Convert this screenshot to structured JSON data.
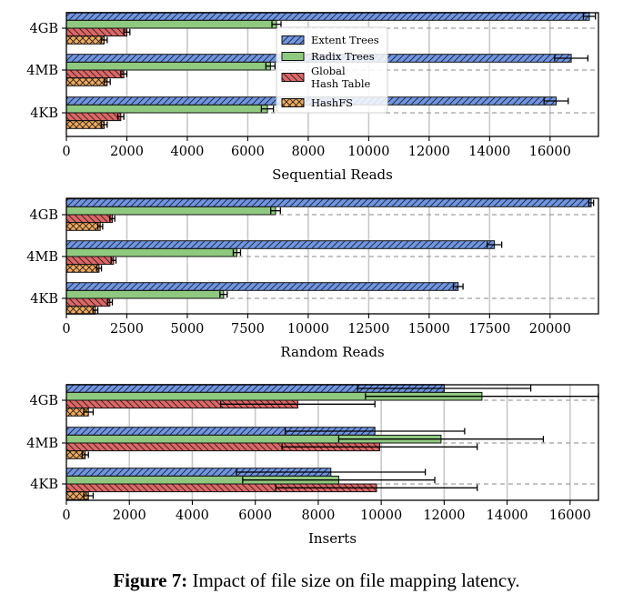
{
  "caption": {
    "label": "Figure 7:",
    "text": "Impact of file size on file mapping latency."
  },
  "colors": {
    "Extent Trees": "#6f96e6",
    "Radix Trees": "#8fc97f",
    "Global Hash Table": "#e06666",
    "HashFS": "#f4a95c"
  },
  "chart_data": [
    {
      "type": "bar",
      "orientation": "horizontal",
      "xlabel": "Sequential Reads",
      "xlim": [
        0,
        17600
      ],
      "xticks": [
        0,
        2000,
        4000,
        6000,
        8000,
        10000,
        12000,
        14000,
        16000
      ],
      "categories": [
        "4KB",
        "4MB",
        "4GB"
      ],
      "legend": {
        "placement": "top-center",
        "entries": [
          "Extent Trees",
          "Radix Trees",
          "Global Hash Table",
          "HashFS"
        ]
      },
      "series": [
        {
          "name": "Extent Trees",
          "values": [
            16200,
            16700,
            17300
          ],
          "errors": [
            400,
            550,
            200
          ]
        },
        {
          "name": "Radix Trees",
          "values": [
            6650,
            6750,
            6950
          ],
          "errors": [
            200,
            150,
            150
          ]
        },
        {
          "name": "Global Hash Table",
          "values": [
            1800,
            1900,
            2000
          ],
          "errors": [
            100,
            100,
            100
          ]
        },
        {
          "name": "HashFS",
          "values": [
            1250,
            1350,
            1250
          ],
          "errors": [
            100,
            100,
            100
          ]
        }
      ]
    },
    {
      "type": "bar",
      "orientation": "horizontal",
      "xlabel": "Random Reads",
      "xlim": [
        0,
        22000
      ],
      "xticks": [
        0,
        2500,
        5000,
        7500,
        10000,
        12500,
        15000,
        17500,
        20000
      ],
      "categories": [
        "4KB",
        "4MB",
        "4GB"
      ],
      "series": [
        {
          "name": "Extent Trees",
          "values": [
            16200,
            17700,
            21700
          ],
          "errors": [
            200,
            300,
            100
          ]
        },
        {
          "name": "Radix Trees",
          "values": [
            6500,
            7050,
            8650
          ],
          "errors": [
            150,
            150,
            200
          ]
        },
        {
          "name": "Global Hash Table",
          "values": [
            1800,
            1950,
            1900
          ],
          "errors": [
            100,
            100,
            100
          ]
        },
        {
          "name": "HashFS",
          "values": [
            1200,
            1350,
            1400
          ],
          "errors": [
            100,
            100,
            100
          ]
        }
      ]
    },
    {
      "type": "bar",
      "orientation": "horizontal",
      "xlabel": "Inserts",
      "xlim": [
        0,
        16900
      ],
      "xticks": [
        0,
        2000,
        4000,
        6000,
        8000,
        10000,
        12000,
        14000,
        16000
      ],
      "categories": [
        "4KB",
        "4MB",
        "4GB"
      ],
      "series": [
        {
          "name": "Extent Trees",
          "values": [
            8400,
            9800,
            12000
          ],
          "errors": [
            3000,
            2850,
            2750
          ]
        },
        {
          "name": "Radix Trees",
          "values": [
            8650,
            11900,
            13200
          ],
          "errors": [
            3050,
            3250,
            3700
          ]
        },
        {
          "name": "Global Hash Table",
          "values": [
            9850,
            9950,
            7350
          ],
          "errors": [
            3200,
            3100,
            2450
          ]
        },
        {
          "name": "HashFS",
          "values": [
            700,
            600,
            700
          ],
          "errors": [
            150,
            100,
            150
          ]
        }
      ]
    }
  ]
}
